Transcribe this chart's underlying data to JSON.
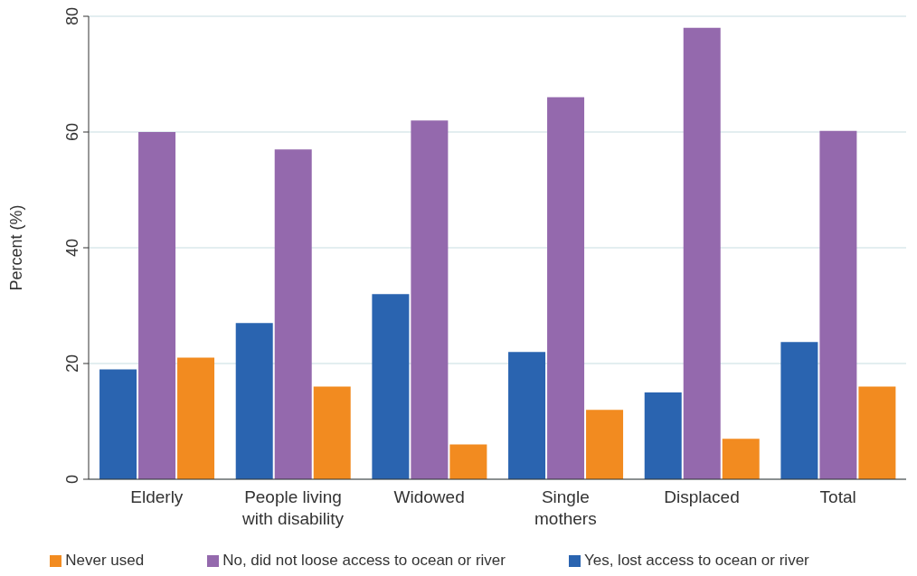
{
  "chart_data": {
    "type": "bar",
    "ylabel": "Percent (%)",
    "categories": [
      "Elderly",
      "People living with disability",
      "Widowed",
      "Single mothers",
      "Displaced",
      "Total"
    ],
    "series": [
      {
        "name": "Yes, lost access to ocean or river",
        "color": "#2a64b0",
        "values": [
          19,
          27,
          32,
          22,
          15,
          23.7
        ]
      },
      {
        "name": "No, did not loose access to ocean or river",
        "color": "#9469ad",
        "values": [
          60,
          57,
          62,
          66,
          78,
          60.2
        ]
      },
      {
        "name": "Never used",
        "color": "#f28b20",
        "values": [
          21,
          16,
          6,
          12,
          7,
          16
        ]
      }
    ],
    "ylim": [
      0,
      80
    ],
    "yticks": [
      0,
      20,
      40,
      60,
      80
    ],
    "grid": "y",
    "legend": "bottom"
  }
}
